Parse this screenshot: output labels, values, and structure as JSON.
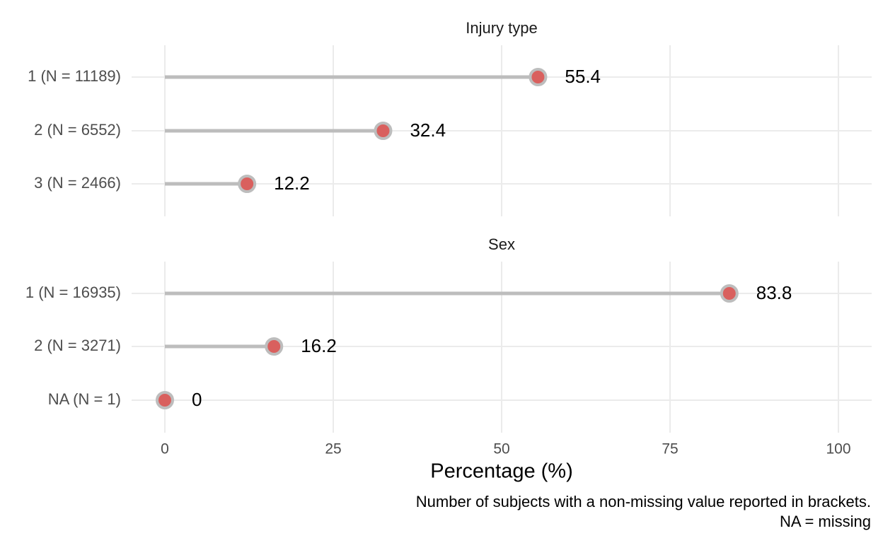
{
  "chart_data": {
    "type": "lollipop",
    "xlabel": "Percentage (%)",
    "xlim": [
      0,
      100
    ],
    "xticks": [
      0,
      25,
      50,
      75,
      100
    ],
    "grid": true,
    "caption": [
      "Number of subjects with a non-missing value reported in brackets.",
      "NA = missing"
    ],
    "colors": {
      "point_fill": "#d9605e",
      "point_stroke": "#bdbdbd",
      "stem": "#bdbdbd",
      "grid": "#ebebeb"
    },
    "facets": [
      {
        "title": "Injury type",
        "categories": [
          "1 (N = 11189)",
          "2 (N = 6552)",
          "3 (N = 2466)"
        ],
        "values": [
          55.4,
          32.4,
          12.2
        ],
        "labels": [
          "55.4",
          "32.4",
          "12.2"
        ]
      },
      {
        "title": "Sex",
        "categories": [
          "1 (N = 16935)",
          "2 (N = 3271)",
          "NA (N = 1)"
        ],
        "values": [
          83.8,
          16.2,
          0
        ],
        "labels": [
          "83.8",
          "16.2",
          "0"
        ]
      }
    ]
  }
}
